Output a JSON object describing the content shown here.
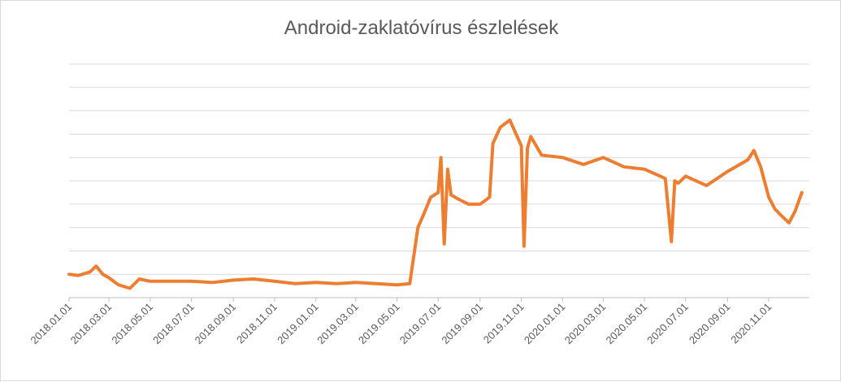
{
  "chart_data": {
    "type": "line",
    "title": "Android-zaklatóvírus észlelések",
    "xlabel": "",
    "ylabel": "",
    "grid": true,
    "y_tick_labels_shown": false,
    "ylim": [
      0,
      10
    ],
    "x_tick_labels": [
      "2018.01.01",
      "2018.03.01",
      "2018.05.01",
      "2018.07.01",
      "2018.09.01",
      "2018.11.01",
      "2019.01.01",
      "2019.03.01",
      "2019.05.01",
      "2019.07.01",
      "2019.09.01",
      "2019.11.01",
      "2020.01.01",
      "2020.03.01",
      "2020.05.01",
      "2020.07.01",
      "2020.09.01",
      "2020.11.01"
    ],
    "series": [
      {
        "color": "#ED7D31",
        "x": [
          "2018.01.01",
          "2018.01.15",
          "2018.02.01",
          "2018.02.10",
          "2018.02.20",
          "2018.03.01",
          "2018.03.15",
          "2018.04.01",
          "2018.04.15",
          "2018.05.01",
          "2018.06.01",
          "2018.07.01",
          "2018.08.01",
          "2018.09.01",
          "2018.10.01",
          "2018.11.01",
          "2018.12.01",
          "2019.01.01",
          "2019.02.01",
          "2019.03.01",
          "2019.04.01",
          "2019.05.01",
          "2019.05.20",
          "2019.06.01",
          "2019.06.10",
          "2019.06.20",
          "2019.07.01",
          "2019.07.05",
          "2019.07.10",
          "2019.07.15",
          "2019.07.20",
          "2019.08.01",
          "2019.08.15",
          "2019.09.01",
          "2019.09.15",
          "2019.09.20",
          "2019.10.01",
          "2019.10.15",
          "2019.11.01",
          "2019.11.05",
          "2019.11.10",
          "2019.11.15",
          "2019.12.01",
          "2020.01.01",
          "2020.02.01",
          "2020.03.01",
          "2020.04.01",
          "2020.05.01",
          "2020.06.01",
          "2020.06.10",
          "2020.06.15",
          "2020.06.20",
          "2020.07.01",
          "2020.08.01",
          "2020.09.01",
          "2020.10.01",
          "2020.10.10",
          "2020.10.20",
          "2020.11.01",
          "2020.11.10",
          "2020.11.20",
          "2020.12.01",
          "2020.12.10",
          "2020.12.20"
        ],
        "values": [
          1.0,
          0.95,
          1.1,
          1.35,
          1.0,
          0.85,
          0.55,
          0.4,
          0.8,
          0.7,
          0.7,
          0.7,
          0.65,
          0.75,
          0.8,
          0.7,
          0.6,
          0.65,
          0.6,
          0.65,
          0.6,
          0.55,
          0.6,
          3.0,
          3.6,
          4.3,
          4.5,
          6.0,
          2.3,
          5.5,
          4.4,
          4.2,
          4.0,
          4.0,
          4.3,
          6.6,
          7.3,
          7.6,
          6.5,
          2.2,
          6.4,
          6.9,
          6.1,
          6.0,
          5.7,
          6.0,
          5.6,
          5.5,
          5.1,
          2.4,
          5.0,
          4.9,
          5.2,
          4.8,
          5.4,
          5.9,
          6.3,
          5.6,
          4.3,
          3.8,
          3.5,
          3.2,
          3.7,
          4.5
        ]
      }
    ]
  }
}
